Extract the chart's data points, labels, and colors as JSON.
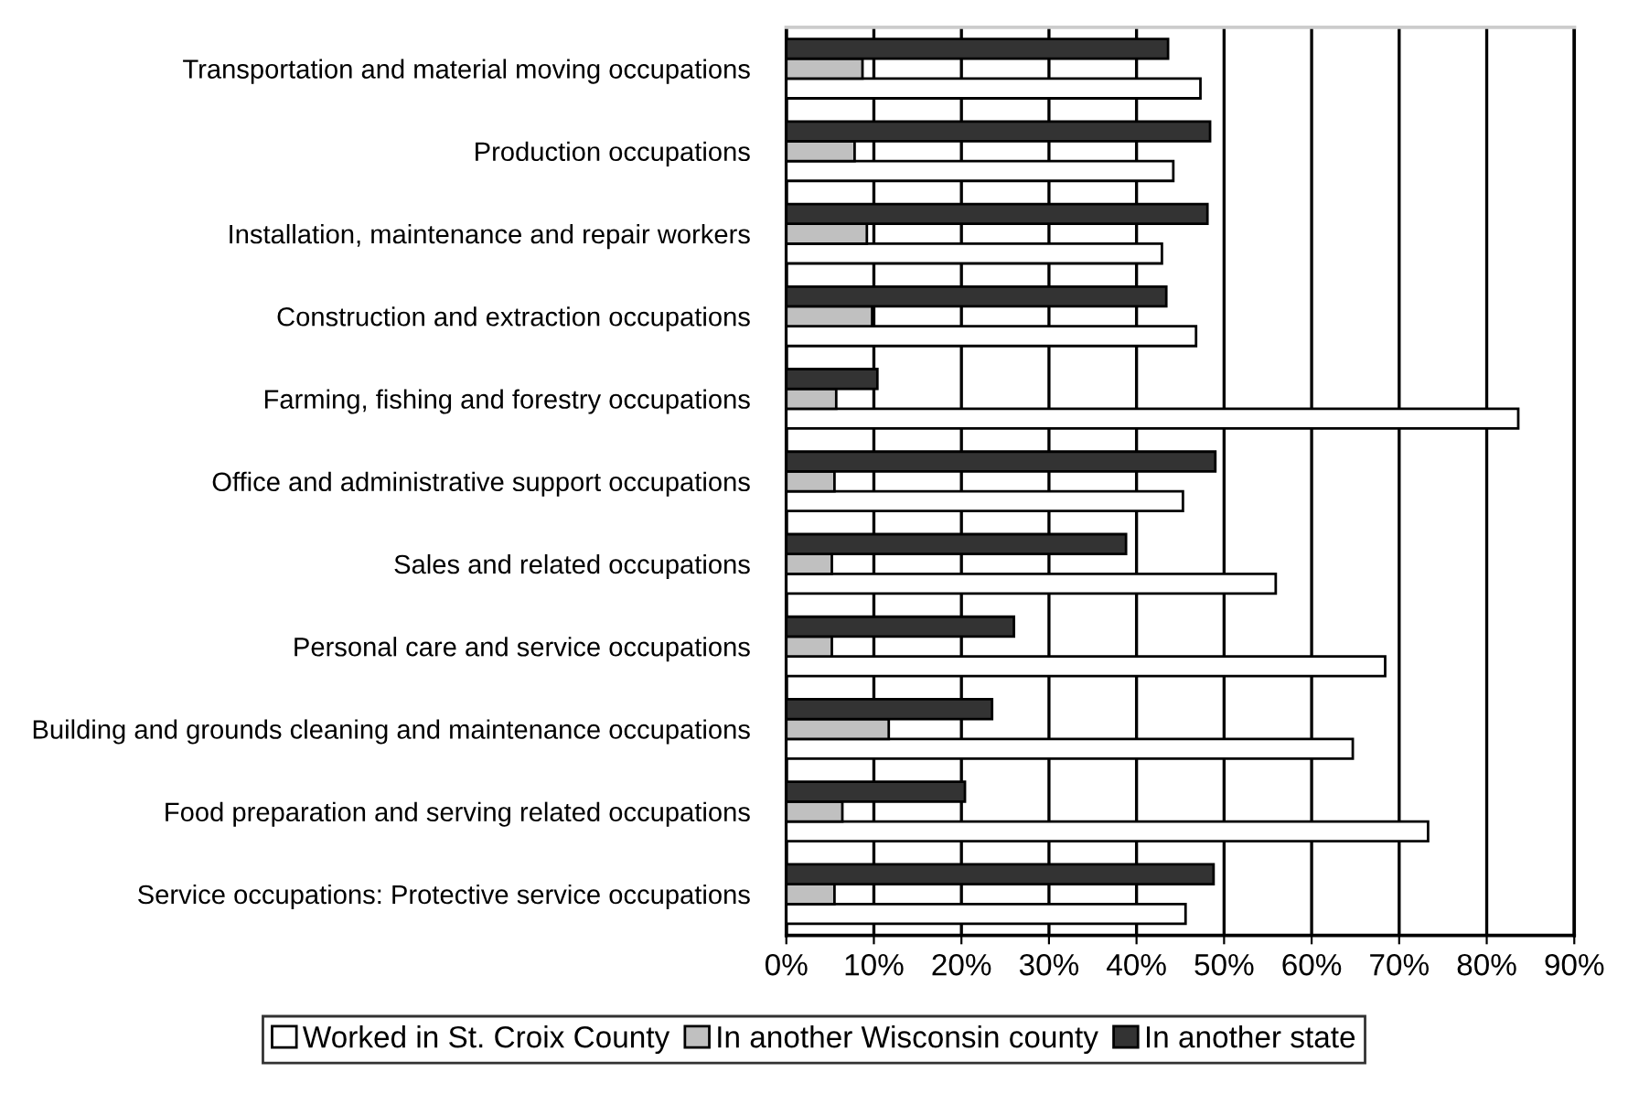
{
  "chart_data": {
    "type": "bar",
    "orientation": "horizontal",
    "categories": [
      "Transportation and material moving occupations",
      "Production occupations",
      "Installation, maintenance and repair workers",
      "Construction and extraction occupations",
      "Farming, fishing and forestry occupations",
      "Office and administrative support occupations",
      "Sales and related occupations",
      "Personal care and service occupations",
      "Building and grounds cleaning and maintenance occupations",
      "Food preparation and serving related occupations",
      "Service occupations: Protective service occupations"
    ],
    "series": [
      {
        "name": "Worked in St. Croix County",
        "color": "#ffffff",
        "values": [
          47.3,
          44.2,
          42.9,
          46.8,
          83.6,
          45.3,
          55.9,
          68.4,
          64.7,
          73.3,
          45.6
        ]
      },
      {
        "name": "In another Wisconsin county",
        "color": "#c0c0c0",
        "values": [
          8.7,
          7.8,
          9.2,
          9.8,
          5.7,
          5.5,
          5.2,
          5.2,
          11.7,
          6.4,
          5.5
        ]
      },
      {
        "name": "In another state",
        "color": "#333333",
        "values": [
          43.6,
          48.4,
          48.1,
          43.4,
          10.4,
          49.0,
          38.8,
          26.0,
          23.5,
          20.4,
          48.8
        ]
      }
    ],
    "xlim": [
      0,
      90
    ],
    "xticks": [
      {
        "value": 0,
        "label": "0%"
      },
      {
        "value": 10,
        "label": "10%"
      },
      {
        "value": 20,
        "label": "20%"
      },
      {
        "value": 30,
        "label": "30%"
      },
      {
        "value": 40,
        "label": "40%"
      },
      {
        "value": 50,
        "label": "50%"
      },
      {
        "value": 60,
        "label": "60%"
      },
      {
        "value": 70,
        "label": "70%"
      },
      {
        "value": 80,
        "label": "80%"
      },
      {
        "value": 90,
        "label": "90%"
      }
    ],
    "grid": "x",
    "legend": "bottom"
  }
}
